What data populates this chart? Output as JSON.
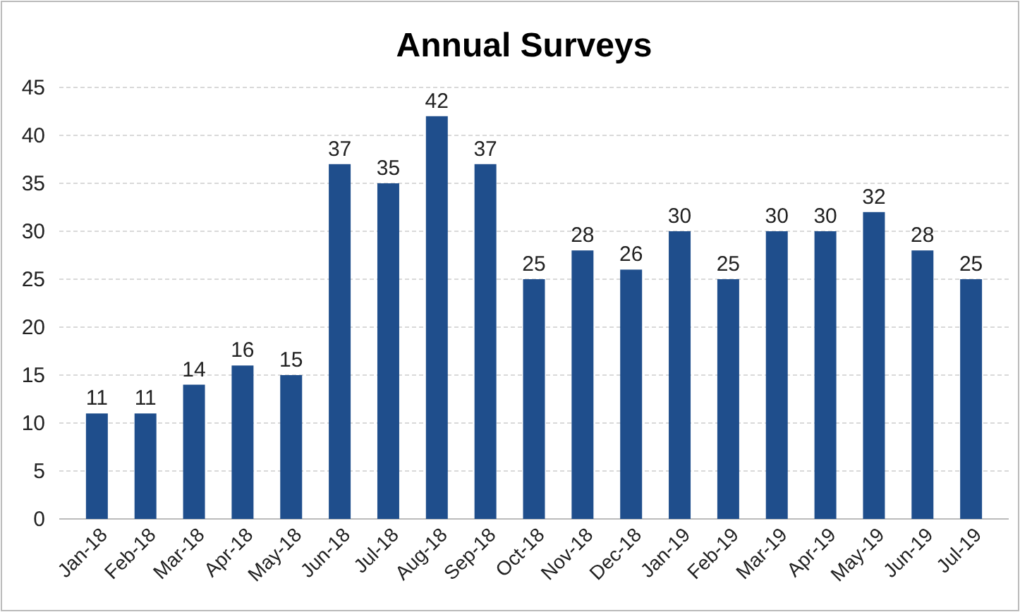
{
  "chart_data": {
    "type": "bar",
    "title": "Annual Surveys",
    "categories": [
      "Jan-18",
      "Feb-18",
      "Mar-18",
      "Apr-18",
      "May-18",
      "Jun-18",
      "Jul-18",
      "Aug-18",
      "Sep-18",
      "Oct-18",
      "Nov-18",
      "Dec-18",
      "Jan-19",
      "Feb-19",
      "Mar-19",
      "Apr-19",
      "May-19",
      "Jun-19",
      "Jul-19"
    ],
    "values": [
      11,
      11,
      14,
      16,
      15,
      37,
      35,
      42,
      37,
      25,
      28,
      26,
      30,
      25,
      30,
      30,
      32,
      28,
      25
    ],
    "color": "#1f4e8c",
    "ylim": [
      0,
      45
    ],
    "yticks": [
      0,
      5,
      10,
      15,
      20,
      25,
      30,
      35,
      40,
      45
    ],
    "grid": "y",
    "data_labels": true
  }
}
